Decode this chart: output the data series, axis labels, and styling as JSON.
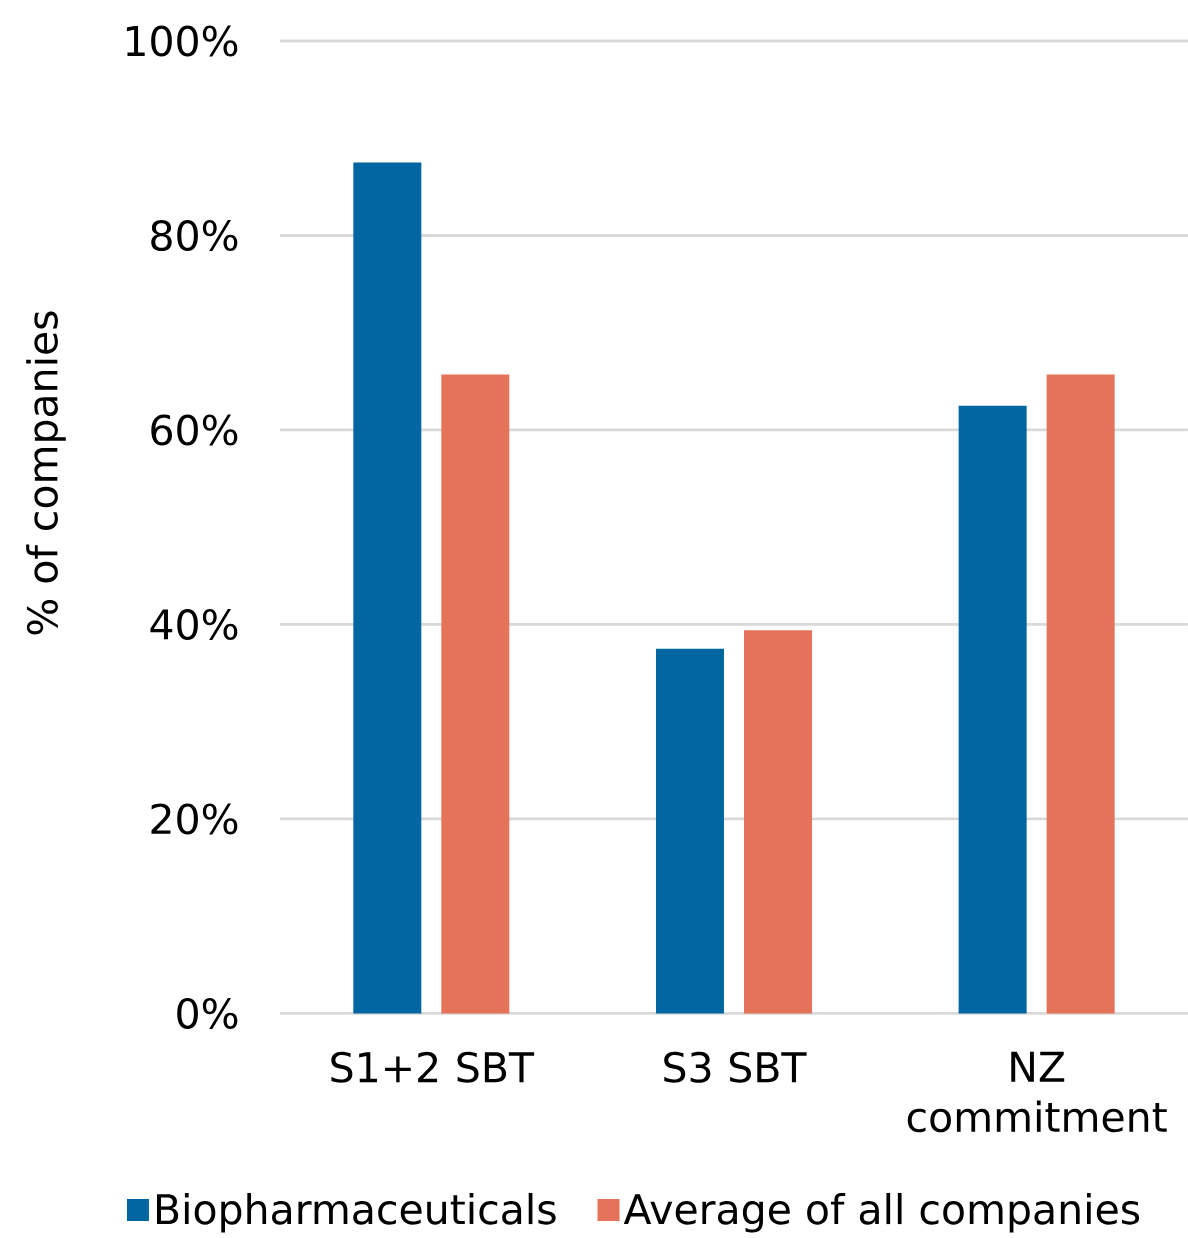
{
  "chart_data": {
    "type": "bar",
    "ylabel": "% of companies",
    "categories": [
      "S1+2 SBT",
      "S3 SBT",
      "NZ commitment"
    ],
    "series": [
      {
        "name": "Biopharmaceuticals",
        "color": "#0066a1",
        "values": [
          87.5,
          37.5,
          62.5
        ]
      },
      {
        "name": "Average of all companies",
        "color": "#e5735a",
        "values": [
          65.7,
          39.4,
          65.7
        ]
      }
    ],
    "ylim": [
      0,
      100
    ],
    "yticks": [
      {
        "value": 0,
        "label": "0%"
      },
      {
        "value": 20,
        "label": "20%"
      },
      {
        "value": 40,
        "label": "40%"
      },
      {
        "value": 60,
        "label": "60%"
      },
      {
        "value": 80,
        "label": "80%"
      },
      {
        "value": 100,
        "label": "100%"
      }
    ],
    "grid": "y",
    "legend": "bottom"
  }
}
